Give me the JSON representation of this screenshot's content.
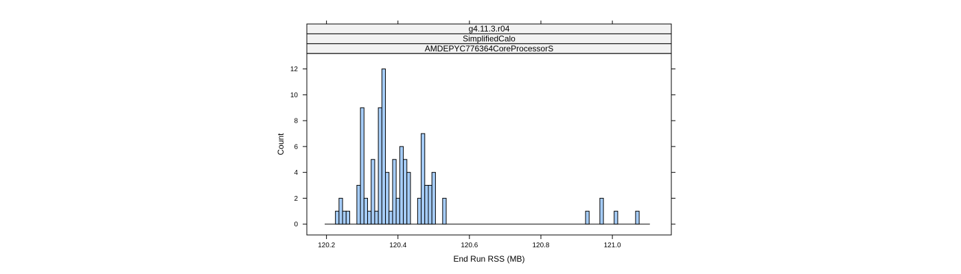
{
  "chart_data": {
    "type": "bar",
    "subtype": "histogram",
    "strips": [
      "g4.11.3.r04",
      "SimplifiedCalo",
      "AMDEPYC776364CoreProcessorS"
    ],
    "xlabel": "End Run RSS (MB)",
    "ylabel": "Count",
    "xlim": [
      120.145,
      121.165
    ],
    "ylim": [
      -0.84,
      13.2
    ],
    "xticks": [
      120.2,
      120.4,
      120.6,
      120.8,
      121.0
    ],
    "xtick_labels": [
      "120.2",
      "120.4",
      "120.6",
      "120.8",
      "121.0"
    ],
    "yticks": [
      0,
      2,
      4,
      6,
      8,
      10,
      12
    ],
    "bin_width": 0.01,
    "baseline_range": [
      120.195,
      121.105
    ],
    "bars": [
      {
        "x": 120.23,
        "count": 1
      },
      {
        "x": 120.24,
        "count": 2
      },
      {
        "x": 120.25,
        "count": 1
      },
      {
        "x": 120.26,
        "count": 1
      },
      {
        "x": 120.29,
        "count": 3
      },
      {
        "x": 120.3,
        "count": 9
      },
      {
        "x": 120.31,
        "count": 2
      },
      {
        "x": 120.32,
        "count": 1
      },
      {
        "x": 120.33,
        "count": 5
      },
      {
        "x": 120.34,
        "count": 1
      },
      {
        "x": 120.35,
        "count": 9
      },
      {
        "x": 120.36,
        "count": 12
      },
      {
        "x": 120.37,
        "count": 4
      },
      {
        "x": 120.38,
        "count": 1
      },
      {
        "x": 120.39,
        "count": 5
      },
      {
        "x": 120.4,
        "count": 2
      },
      {
        "x": 120.41,
        "count": 6
      },
      {
        "x": 120.42,
        "count": 5
      },
      {
        "x": 120.43,
        "count": 4
      },
      {
        "x": 120.46,
        "count": 2
      },
      {
        "x": 120.47,
        "count": 7
      },
      {
        "x": 120.48,
        "count": 3
      },
      {
        "x": 120.49,
        "count": 3
      },
      {
        "x": 120.5,
        "count": 4
      },
      {
        "x": 120.53,
        "count": 2
      },
      {
        "x": 120.93,
        "count": 1
      },
      {
        "x": 120.97,
        "count": 2
      },
      {
        "x": 121.01,
        "count": 1
      },
      {
        "x": 121.07,
        "count": 1
      }
    ],
    "bar_fill": "#9ecae1",
    "bar_fill_display": "#a6cdf8",
    "strip_fill": "#f2f2f2",
    "grid": false,
    "legend": "none"
  }
}
